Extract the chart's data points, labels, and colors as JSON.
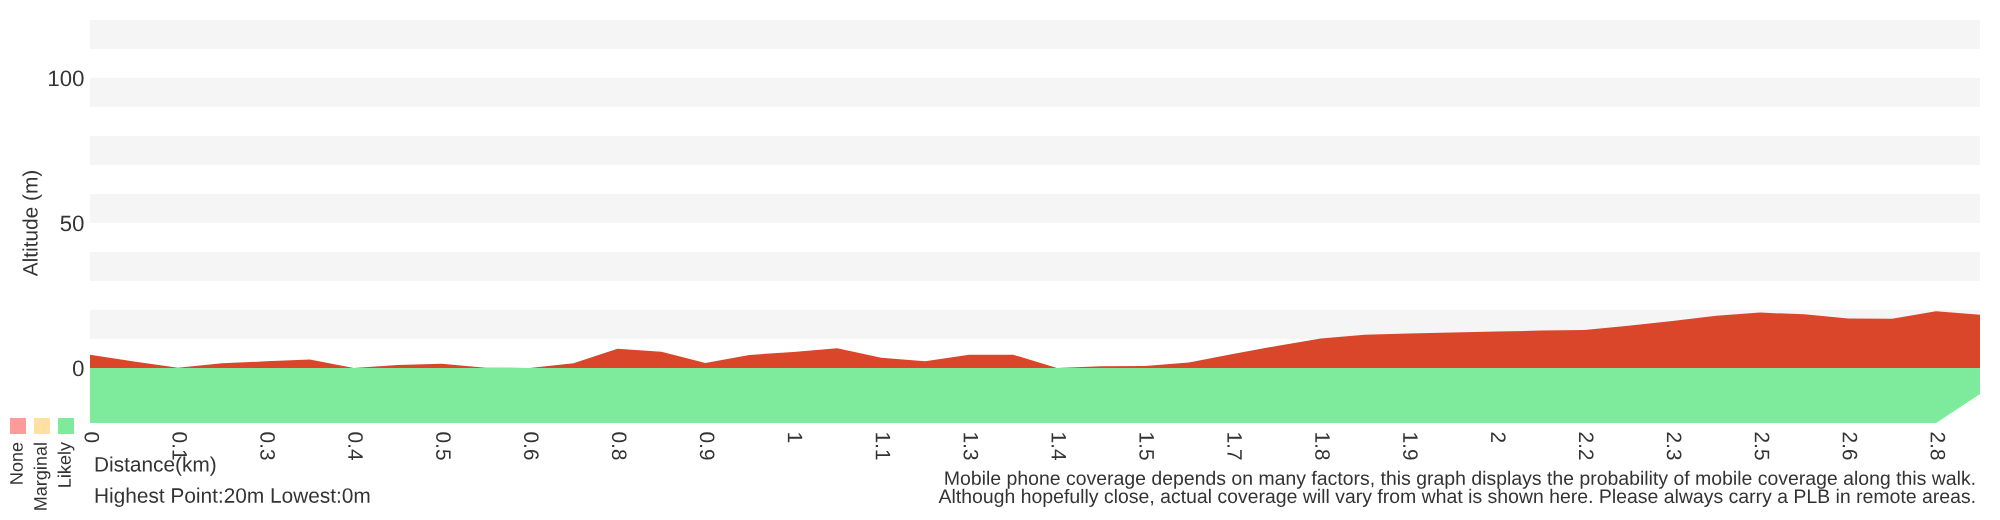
{
  "chart_data": {
    "type": "area",
    "xlabel": "Distance(km)",
    "ylabel": "Altitude (m)",
    "categories": [
      "0",
      null,
      "0.1",
      null,
      "0.3",
      null,
      "0.4",
      null,
      "0.5",
      null,
      "0.6",
      null,
      "0.8",
      null,
      "0.9",
      null,
      "1",
      null,
      "1.1",
      null,
      "1.3",
      null,
      "1.4",
      null,
      "1.5",
      null,
      "1.7",
      null,
      "1.8",
      null,
      "1.9",
      null,
      "2",
      null,
      "2.2",
      null,
      "2.3",
      null,
      "2.5",
      null,
      "2.6",
      null,
      "2.8",
      null
    ],
    "ylim": [
      -20,
      120
    ],
    "yticks": [
      0,
      50,
      100
    ],
    "grid": false,
    "legend": "bottom left",
    "bands": [
      {
        "axis": "y",
        "from": 10,
        "to": 20,
        "color": "#f5f5f5"
      },
      {
        "axis": "y",
        "from": 30,
        "to": 40,
        "color": "#f5f5f5"
      },
      {
        "axis": "y",
        "from": 50,
        "to": 60,
        "color": "#f5f5f5"
      },
      {
        "axis": "y",
        "from": 70,
        "to": 80,
        "color": "#f5f5f5"
      },
      {
        "axis": "y",
        "from": 90,
        "to": 100,
        "color": "#f5f5f5"
      },
      {
        "axis": "y",
        "from": 110,
        "to": 120,
        "color": "#f5f5f5"
      }
    ],
    "series": [
      {
        "color": "#d9462a",
        "values": [
          4.6,
          2.2,
          0.1,
          1.6,
          2.3,
          2.9,
          0,
          1.0,
          1.5,
          0.1,
          0,
          1.6,
          6.6,
          5.6,
          1.7,
          4.5,
          5.5,
          6.8,
          3.5,
          2.3,
          4.6,
          4.6,
          0,
          0.6,
          0.7,
          1.9,
          4.8,
          7.6,
          10.2,
          11.5,
          11.9,
          12.2,
          12.6,
          12.9,
          13.1,
          14.6,
          16.2,
          18.0,
          19.1,
          18.5,
          17.1,
          17.0,
          19.6,
          18.4
        ]
      },
      {
        "name": "None",
        "color": "#ff9a9a",
        "type": "bar",
        "values": [
          null,
          null,
          null,
          null,
          null,
          null,
          null,
          null,
          null,
          null,
          null,
          null,
          null,
          null,
          null,
          null,
          null,
          null,
          null,
          null,
          null,
          null,
          null,
          null,
          null,
          null,
          null,
          null,
          null,
          null,
          null,
          null,
          null,
          null,
          null,
          null,
          null,
          null,
          null,
          null,
          null,
          null,
          null,
          null
        ]
      },
      {
        "name": "Marginal",
        "color": "#ffe0a0",
        "type": "bar",
        "values": [
          null,
          null,
          null,
          null,
          null,
          null,
          null,
          null,
          null,
          null,
          null,
          null,
          null,
          null,
          null,
          null,
          null,
          null,
          null,
          null,
          null,
          null,
          null,
          null,
          null,
          null,
          null,
          null,
          null,
          null,
          null,
          null,
          null,
          null,
          null,
          null,
          null,
          null,
          null,
          null,
          null,
          null,
          null,
          null
        ]
      },
      {
        "name": "Likely",
        "color": "#7deb9b",
        "type": "area",
        "values": [
          -19,
          -19,
          -19,
          -19,
          -19,
          -19,
          -19,
          -19,
          -19,
          -19,
          -19,
          -19,
          -19,
          -19,
          -19,
          -19,
          -19,
          -19,
          -19,
          -19,
          -19,
          -19,
          -19,
          -19,
          -19,
          -19,
          -19,
          -19,
          -19,
          -19,
          -19,
          -19,
          -19,
          -19,
          -19,
          -19,
          -19,
          -19,
          -19,
          -19,
          -19,
          -19,
          -19,
          -9
        ]
      }
    ],
    "annotations": [
      "Highest Point:20m Lowest:0m",
      "Mobile phone coverage depends on many factors, this graph displays the probability of mobile coverage along this walk.\nAlthough hopefully close, actual coverage will vary from what is shown here. Please always carry a PLB in remote areas."
    ]
  }
}
